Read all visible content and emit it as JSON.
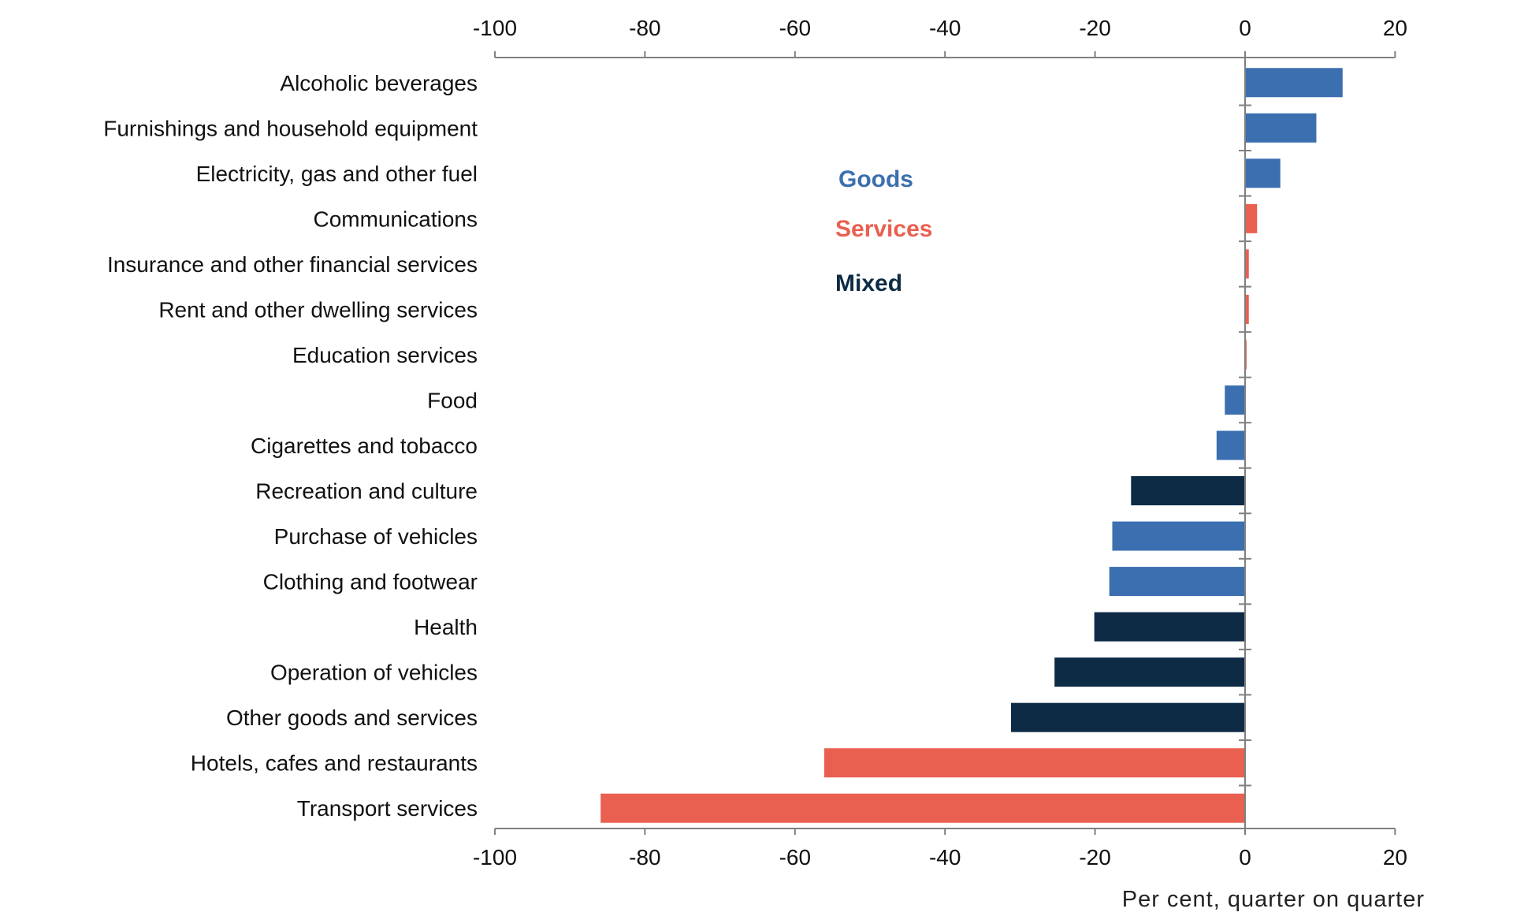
{
  "chart_data": {
    "type": "bar",
    "orientation": "horizontal",
    "title": "",
    "xlabel": "Per cent, quarter on quarter",
    "ylabel": "",
    "xlim": [
      -100,
      20
    ],
    "xticks": [
      -100,
      -80,
      -60,
      -40,
      -20,
      0,
      20
    ],
    "xtick_labels": [
      "-100",
      "-80",
      "-60",
      "-40",
      "-20",
      "0",
      "20"
    ],
    "grid": false,
    "legend": {
      "placement": "top-center",
      "entries": [
        {
          "name": "Goods",
          "color": "#3B6FB0"
        },
        {
          "name": "Services",
          "color": "#E96050"
        },
        {
          "name": "Mixed",
          "color": "#0D2B45"
        }
      ]
    },
    "categories": [
      "Alcoholic beverages",
      "Furnishings and household equipment",
      "Electricity, gas and other fuel",
      "Communications",
      "Insurance and other financial services",
      "Rent and other dwelling services",
      "Education services",
      "Food",
      "Cigarettes and tobacco",
      "Recreation and culture",
      "Purchase of vehicles",
      "Clothing and footwear",
      "Health",
      "Operation of vehicles",
      "Other goods and services",
      "Hotels, cafes and restaurants",
      "Transport services"
    ],
    "values": [
      13.0,
      9.5,
      4.7,
      1.6,
      0.5,
      0.5,
      0.2,
      -2.7,
      -3.8,
      -15.2,
      -17.7,
      -18.1,
      -20.1,
      -25.4,
      -31.2,
      -56.1,
      -85.9
    ],
    "groups": [
      "Goods",
      "Goods",
      "Goods",
      "Services",
      "Services",
      "Services",
      "Services",
      "Goods",
      "Goods",
      "Mixed",
      "Goods",
      "Goods",
      "Mixed",
      "Mixed",
      "Mixed",
      "Services",
      "Services"
    ]
  }
}
